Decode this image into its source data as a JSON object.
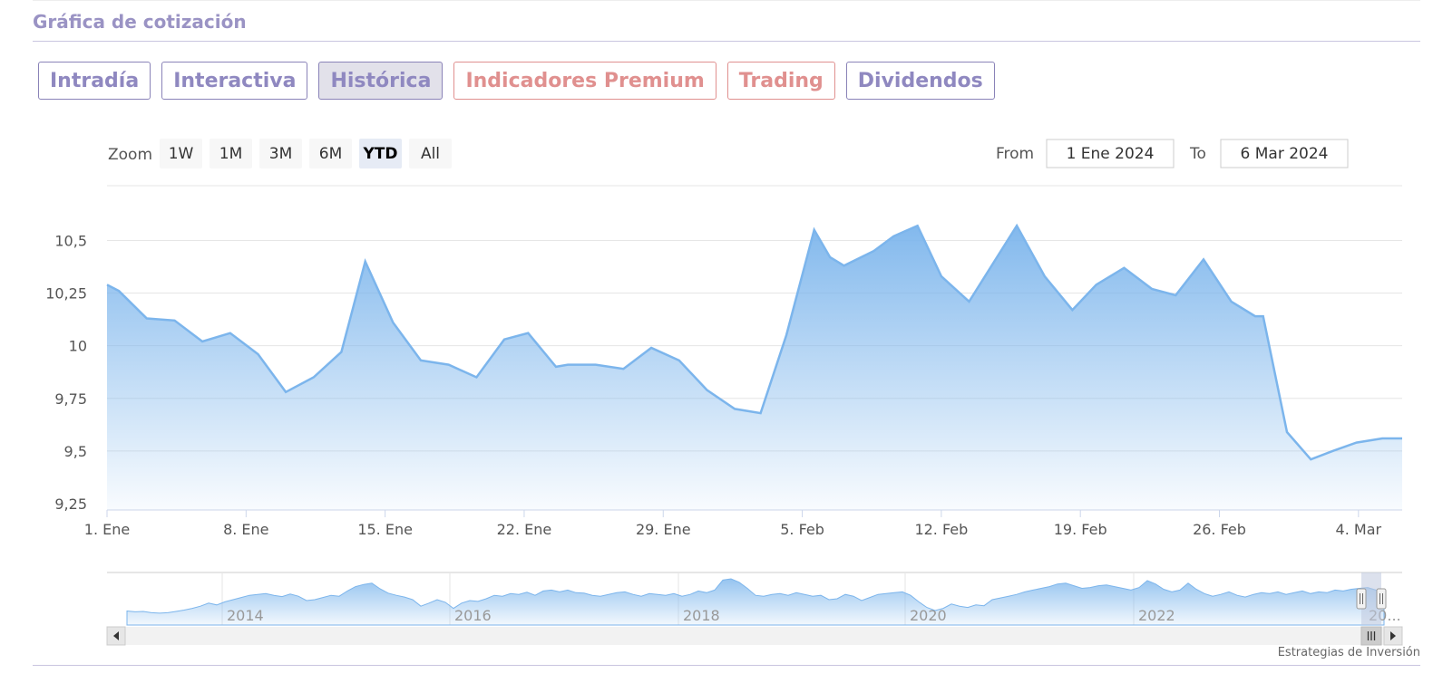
{
  "section_title": "Gráfica de cotización",
  "tabs": [
    {
      "label": "Intradía",
      "active": false,
      "premium": false
    },
    {
      "label": "Interactiva",
      "active": false,
      "premium": false
    },
    {
      "label": "Histórica",
      "active": true,
      "premium": false
    },
    {
      "label": "Indicadores Premium",
      "active": false,
      "premium": true
    },
    {
      "label": "Trading",
      "active": false,
      "premium": true
    },
    {
      "label": "Dividendos",
      "active": false,
      "premium": false
    }
  ],
  "range_selector": {
    "zoom_label": "Zoom",
    "buttons": [
      "1W",
      "1M",
      "3M",
      "6M",
      "YTD",
      "All"
    ],
    "selected": "YTD",
    "from_label": "From",
    "from_value": "1 Ene 2024",
    "to_label": "To",
    "to_value": "6 Mar 2024"
  },
  "chart_data": {
    "type": "area",
    "title": "",
    "xlabel": "",
    "ylabel": "",
    "x_ticks": [
      "1. Ene",
      "8. Ene",
      "15. Ene",
      "22. Ene",
      "29. Ene",
      "5. Feb",
      "12. Feb",
      "19. Feb",
      "26. Feb",
      "4. Mar"
    ],
    "y_ticks": [
      "9,25",
      "10,5",
      "10,25",
      "10",
      "9,75",
      "9,5"
    ],
    "ylim": [
      9.22,
      10.76
    ],
    "xlim": [
      0,
      65.2
    ],
    "grid": true,
    "series": [
      {
        "x": [
          0,
          0.6,
          2,
          3.4,
          4.8,
          6.2,
          7.6,
          9,
          10.4,
          11.8,
          13,
          14.4,
          15.8,
          17.2,
          18.6,
          20,
          21.2,
          22.6,
          23.2,
          24.6,
          26,
          27.4,
          28.8,
          30.2,
          31.6,
          32.9,
          34.2,
          35.6,
          36.4,
          37.1,
          38.6,
          39.6,
          40.8,
          42,
          43.4,
          44.6,
          45.8,
          47.2,
          48.6,
          49.8,
          51.2,
          52.6,
          53.8,
          55.2,
          56.6,
          57.8,
          58.2,
          59.4,
          60.6,
          61.7,
          62.9,
          64.2,
          65.2
        ],
        "y": [
          10.29,
          10.26,
          10.13,
          10.12,
          10.02,
          10.06,
          9.96,
          9.78,
          9.85,
          9.97,
          10.4,
          10.11,
          9.93,
          9.91,
          9.85,
          10.03,
          10.06,
          9.9,
          9.91,
          9.91,
          9.89,
          9.99,
          9.93,
          9.79,
          9.7,
          9.68,
          10.05,
          10.55,
          10.42,
          10.38,
          10.45,
          10.52,
          10.57,
          10.33,
          10.21,
          10.39,
          10.57,
          10.33,
          10.17,
          10.29,
          10.37,
          10.27,
          10.24,
          10.41,
          10.21,
          10.14,
          10.14,
          9.59,
          9.46,
          9.5,
          9.54,
          9.56,
          9.56
        ]
      }
    ],
    "navigator": {
      "x_ticks": [
        "2014",
        "2016",
        "2018",
        "2020",
        "2022",
        "20..."
      ],
      "values": [
        0.24,
        0.22,
        0.23,
        0.2,
        0.19,
        0.2,
        0.23,
        0.26,
        0.3,
        0.35,
        0.42,
        0.38,
        0.45,
        0.5,
        0.55,
        0.6,
        0.62,
        0.64,
        0.6,
        0.57,
        0.63,
        0.58,
        0.48,
        0.5,
        0.55,
        0.6,
        0.58,
        0.7,
        0.8,
        0.85,
        0.88,
        0.75,
        0.65,
        0.6,
        0.56,
        0.5,
        0.35,
        0.42,
        0.5,
        0.44,
        0.3,
        0.42,
        0.48,
        0.46,
        0.52,
        0.6,
        0.58,
        0.64,
        0.62,
        0.67,
        0.6,
        0.7,
        0.72,
        0.68,
        0.72,
        0.66,
        0.65,
        0.6,
        0.58,
        0.62,
        0.66,
        0.68,
        0.62,
        0.58,
        0.64,
        0.62,
        0.6,
        0.64,
        0.58,
        0.62,
        0.7,
        0.66,
        0.72,
        0.95,
        0.98,
        0.9,
        0.76,
        0.6,
        0.58,
        0.62,
        0.64,
        0.6,
        0.66,
        0.62,
        0.58,
        0.6,
        0.5,
        0.52,
        0.62,
        0.58,
        0.48,
        0.55,
        0.62,
        0.64,
        0.66,
        0.68,
        0.6,
        0.45,
        0.32,
        0.25,
        0.3,
        0.4,
        0.35,
        0.32,
        0.38,
        0.36,
        0.5,
        0.54,
        0.58,
        0.62,
        0.68,
        0.72,
        0.76,
        0.8,
        0.86,
        0.88,
        0.82,
        0.76,
        0.78,
        0.82,
        0.84,
        0.8,
        0.76,
        0.72,
        0.78,
        0.94,
        0.86,
        0.74,
        0.68,
        0.72,
        0.88,
        0.74,
        0.64,
        0.58,
        0.62,
        0.68,
        0.6,
        0.56,
        0.62,
        0.66,
        0.64,
        0.68,
        0.62,
        0.66,
        0.7,
        0.64,
        0.68,
        0.66,
        0.72,
        0.7,
        0.74,
        0.76,
        0.78,
        0.72,
        0.62
      ]
    },
    "colors": {
      "line": "#7cb5ec",
      "grid": "#e6e6e6",
      "axis_text": "#555555"
    }
  },
  "credit": "Estrategias de Inversión"
}
